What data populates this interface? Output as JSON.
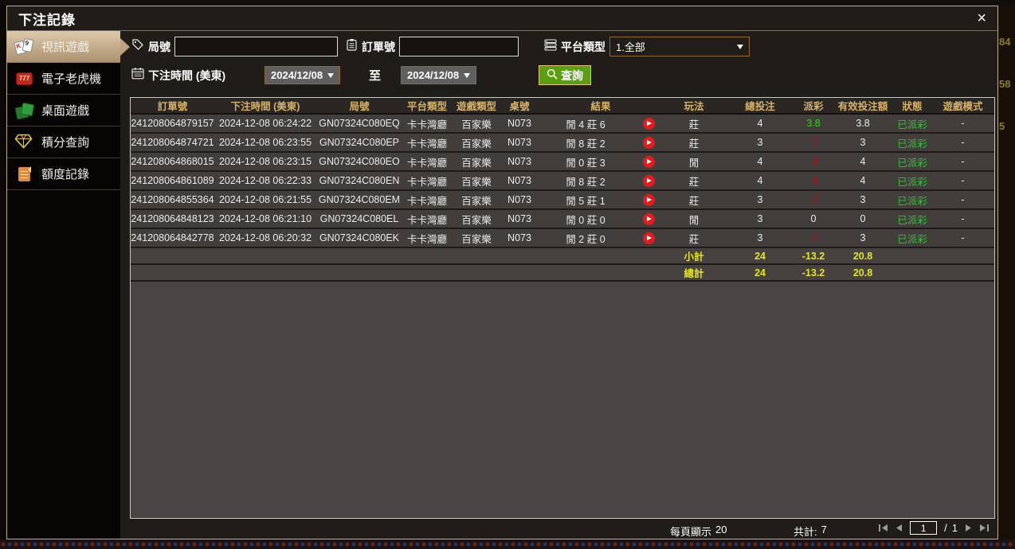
{
  "dialog": {
    "title": "下注記錄",
    "close_glyph": "×"
  },
  "sidebar": {
    "items": [
      {
        "label": "視訊遊戲",
        "icon": "video-games-icon",
        "selected": true
      },
      {
        "label": "電子老虎機",
        "icon": "slot-machine-icon",
        "selected": false
      },
      {
        "label": "桌面遊戲",
        "icon": "table-games-icon",
        "selected": false
      },
      {
        "label": "積分查詢",
        "icon": "points-gem-icon",
        "selected": false
      },
      {
        "label": "額度記錄",
        "icon": "credit-log-icon",
        "selected": false
      }
    ]
  },
  "filters": {
    "round_label": "局號",
    "round_value": "",
    "order_label": "訂單號",
    "order_value": "",
    "platform_label": "平台類型",
    "platform_selected": "1.全部",
    "bet_time_label": "下注時間 (美東)",
    "date_from": "2024/12/08",
    "to_label": "至",
    "date_to": "2024/12/08",
    "search_label": "查詢"
  },
  "table": {
    "headers": [
      "訂單號",
      "下注時間 (美東)",
      "局號",
      "平台類型",
      "遊戲類型",
      "桌號",
      "結果",
      "玩法",
      "總投注",
      "派彩",
      "有效投注額",
      "狀態",
      "遊戲模式"
    ],
    "rows": [
      {
        "order_id": "241208064879157",
        "bet_time": "2024-12-08 06:24:22",
        "round_id": "GN07324C080EQ",
        "platform": "卡卡灣廳",
        "game_type": "百家樂",
        "table_no": "N073",
        "result": "閒 4 莊 6",
        "play_type": "莊",
        "total_bet": "4",
        "payout": "3.8",
        "valid_bet": "3.8",
        "status": "已派彩",
        "game_mode": "-"
      },
      {
        "order_id": "241208064874721",
        "bet_time": "2024-12-08 06:23:55",
        "round_id": "GN07324C080EP",
        "platform": "卡卡灣廳",
        "game_type": "百家樂",
        "table_no": "N073",
        "result": "閒 8 莊 2",
        "play_type": "莊",
        "total_bet": "3",
        "payout": "-3",
        "valid_bet": "3",
        "status": "已派彩",
        "game_mode": "-"
      },
      {
        "order_id": "241208064868015",
        "bet_time": "2024-12-08 06:23:15",
        "round_id": "GN07324C080EO",
        "platform": "卡卡灣廳",
        "game_type": "百家樂",
        "table_no": "N073",
        "result": "閒 0 莊 3",
        "play_type": "閒",
        "total_bet": "4",
        "payout": "-4",
        "valid_bet": "4",
        "status": "已派彩",
        "game_mode": "-"
      },
      {
        "order_id": "241208064861089",
        "bet_time": "2024-12-08 06:22:33",
        "round_id": "GN07324C080EN",
        "platform": "卡卡灣廳",
        "game_type": "百家樂",
        "table_no": "N073",
        "result": "閒 8 莊 2",
        "play_type": "莊",
        "total_bet": "4",
        "payout": "-4",
        "valid_bet": "4",
        "status": "已派彩",
        "game_mode": "-"
      },
      {
        "order_id": "241208064855364",
        "bet_time": "2024-12-08 06:21:55",
        "round_id": "GN07324C080EM",
        "platform": "卡卡灣廳",
        "game_type": "百家樂",
        "table_no": "N073",
        "result": "閒 5 莊 1",
        "play_type": "莊",
        "total_bet": "3",
        "payout": "-3",
        "valid_bet": "3",
        "status": "已派彩",
        "game_mode": "-"
      },
      {
        "order_id": "241208064848123",
        "bet_time": "2024-12-08 06:21:10",
        "round_id": "GN07324C080EL",
        "platform": "卡卡灣廳",
        "game_type": "百家樂",
        "table_no": "N073",
        "result": "閒 0 莊 0",
        "play_type": "閒",
        "total_bet": "3",
        "payout": "0",
        "valid_bet": "0",
        "status": "已派彩",
        "game_mode": "-"
      },
      {
        "order_id": "241208064842778",
        "bet_time": "2024-12-08 06:20:32",
        "round_id": "GN07324C080EK",
        "platform": "卡卡灣廳",
        "game_type": "百家樂",
        "table_no": "N073",
        "result": "閒 2 莊 0",
        "play_type": "莊",
        "total_bet": "3",
        "payout": "-3",
        "valid_bet": "3",
        "status": "已派彩",
        "game_mode": "-"
      }
    ],
    "subtotal": {
      "label": "小計",
      "total_bet": "24",
      "payout": "-13.2",
      "valid_bet": "20.8"
    },
    "total": {
      "label": "總計",
      "total_bet": "24",
      "payout": "-13.2",
      "valid_bet": "20.8"
    }
  },
  "footer": {
    "page_size_label": "每頁顯示",
    "page_size_value": "20",
    "count_label": "共計:",
    "count_value": "7",
    "page_value": "1",
    "page_separator": "/",
    "page_count": "1"
  },
  "backdrop": {
    "right_fragments": [
      "84",
      "58",
      "5"
    ]
  },
  "colors": {
    "header_gold": "#d6b269",
    "highlight_yellow": "#e9e41f",
    "positive_green": "#2fd40f",
    "negative_red": "#a01414",
    "status_green": "#2fc52f",
    "selected_tab_tan": "#c9b493",
    "query_button_green": "#5a9e12",
    "dialog_border_tan": "#bfae91",
    "play_red": "#e21b1b",
    "date_select_border": "#96672c"
  }
}
